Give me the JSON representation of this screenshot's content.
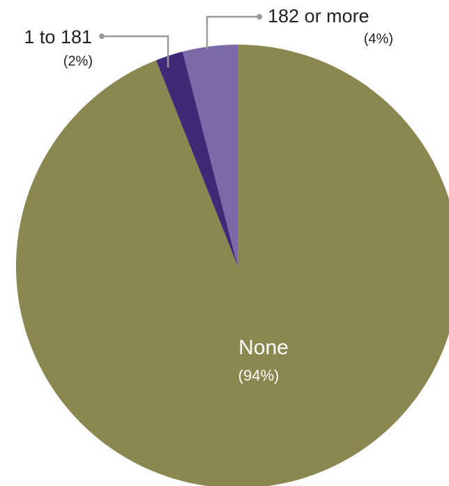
{
  "chart_data": {
    "type": "pie",
    "title": "",
    "slices": [
      {
        "label": "None",
        "value": 94,
        "value_label": "(94%)",
        "color": "#8a8850"
      },
      {
        "label": "1 to 181",
        "value": 2,
        "value_label": "(2%)",
        "color": "#3f2a78"
      },
      {
        "label": "182 or more",
        "value": 4,
        "value_label": "(4%)",
        "color": "#7b6aa7"
      }
    ],
    "start_angle": "12 o'clock",
    "direction": "clockwise",
    "label_style": {
      "inside": "None",
      "outside_with_leaders": [
        "1 to 181",
        "182 or more"
      ]
    }
  }
}
